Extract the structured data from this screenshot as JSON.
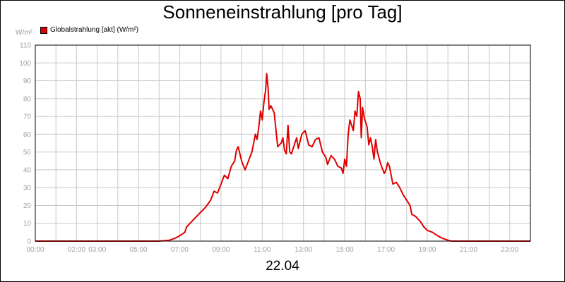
{
  "chart_data": {
    "type": "line",
    "title": "Sonneneinstrahlung [pro Tag]",
    "ylabel": "W/m²",
    "xlabel": "22.04",
    "ylim": [
      0,
      110
    ],
    "y_ticks": [
      "0",
      "10",
      "20",
      "30",
      "40",
      "50",
      "60",
      "70",
      "80",
      "90",
      "100",
      "110"
    ],
    "x_range_hours": [
      0,
      24
    ],
    "x_ticks": [
      {
        "label": "00:00",
        "h": 0
      },
      {
        "label": "02:00",
        "h": 2
      },
      {
        "label": "03:00",
        "h": 3
      },
      {
        "label": "05:00",
        "h": 5
      },
      {
        "label": "07:00",
        "h": 7
      },
      {
        "label": "09:00",
        "h": 9
      },
      {
        "label": "11:00",
        "h": 11
      },
      {
        "label": "13:00",
        "h": 13
      },
      {
        "label": "15:00",
        "h": 15
      },
      {
        "label": "17:00",
        "h": 17
      },
      {
        "label": "19:00",
        "h": 19
      },
      {
        "label": "21:00",
        "h": 21
      },
      {
        "label": "23:00",
        "h": 23
      }
    ],
    "grid": true,
    "legend": "top-left",
    "series": [
      {
        "name": "Globalstrahlung [akt] (W/m²)",
        "color": "#e00000",
        "points": [
          [
            "00:00",
            0
          ],
          [
            "06:00",
            0
          ],
          [
            "06:30",
            0.5
          ],
          [
            "06:45",
            1.5
          ],
          [
            "07:00",
            3
          ],
          [
            "07:15",
            5
          ],
          [
            "07:20",
            8
          ],
          [
            "07:45",
            13
          ],
          [
            "08:00",
            16
          ],
          [
            "08:15",
            19
          ],
          [
            "08:30",
            23
          ],
          [
            "08:40",
            28
          ],
          [
            "08:50",
            27
          ],
          [
            "09:00",
            32
          ],
          [
            "09:10",
            37
          ],
          [
            "09:20",
            35
          ],
          [
            "09:30",
            42
          ],
          [
            "09:40",
            45
          ],
          [
            "09:45",
            51
          ],
          [
            "09:50",
            53
          ],
          [
            "10:00",
            45
          ],
          [
            "10:10",
            40
          ],
          [
            "10:20",
            45
          ],
          [
            "10:30",
            50
          ],
          [
            "10:40",
            60
          ],
          [
            "10:45",
            57
          ],
          [
            "10:50",
            64
          ],
          [
            "10:55",
            73
          ],
          [
            "11:00",
            68
          ],
          [
            "11:05",
            78
          ],
          [
            "11:10",
            85
          ],
          [
            "11:13",
            94
          ],
          [
            "11:17",
            86
          ],
          [
            "11:20",
            74
          ],
          [
            "11:25",
            76
          ],
          [
            "11:35",
            72
          ],
          [
            "11:45",
            53
          ],
          [
            "11:55",
            55
          ],
          [
            "12:00",
            58
          ],
          [
            "12:05",
            51
          ],
          [
            "12:10",
            49
          ],
          [
            "12:15",
            65
          ],
          [
            "12:20",
            50
          ],
          [
            "12:25",
            49
          ],
          [
            "12:35",
            55
          ],
          [
            "12:40",
            58
          ],
          [
            "12:45",
            52
          ],
          [
            "12:55",
            60
          ],
          [
            "13:05",
            62
          ],
          [
            "13:10",
            58
          ],
          [
            "13:15",
            54
          ],
          [
            "13:25",
            53
          ],
          [
            "13:35",
            57
          ],
          [
            "13:45",
            58
          ],
          [
            "13:55",
            50
          ],
          [
            "14:05",
            47
          ],
          [
            "14:10",
            43
          ],
          [
            "14:20",
            48
          ],
          [
            "14:30",
            46
          ],
          [
            "14:40",
            42
          ],
          [
            "14:50",
            41
          ],
          [
            "14:55",
            38
          ],
          [
            "15:00",
            46
          ],
          [
            "15:05",
            42
          ],
          [
            "15:10",
            60
          ],
          [
            "15:15",
            68
          ],
          [
            "15:20",
            65
          ],
          [
            "15:25",
            62
          ],
          [
            "15:30",
            73
          ],
          [
            "15:35",
            70
          ],
          [
            "15:40",
            84
          ],
          [
            "15:45",
            80
          ],
          [
            "15:48",
            58
          ],
          [
            "15:52",
            75
          ],
          [
            "15:57",
            69
          ],
          [
            "16:05",
            64
          ],
          [
            "16:10",
            54
          ],
          [
            "16:15",
            58
          ],
          [
            "16:20",
            53
          ],
          [
            "16:25",
            46
          ],
          [
            "16:30",
            57
          ],
          [
            "16:35",
            50
          ],
          [
            "16:45",
            43
          ],
          [
            "16:55",
            38
          ],
          [
            "17:00",
            40
          ],
          [
            "17:05",
            44
          ],
          [
            "17:10",
            42
          ],
          [
            "17:20",
            32
          ],
          [
            "17:30",
            33
          ],
          [
            "17:40",
            30
          ],
          [
            "17:50",
            26
          ],
          [
            "18:00",
            23
          ],
          [
            "18:10",
            20
          ],
          [
            "18:15",
            15
          ],
          [
            "18:25",
            14
          ],
          [
            "18:30",
            13
          ],
          [
            "18:40",
            11
          ],
          [
            "18:50",
            8
          ],
          [
            "19:00",
            6
          ],
          [
            "19:15",
            5
          ],
          [
            "19:30",
            3
          ],
          [
            "19:45",
            1.5
          ],
          [
            "20:00",
            0.5
          ],
          [
            "20:10",
            0
          ],
          [
            "24:00",
            0
          ]
        ]
      }
    ]
  }
}
